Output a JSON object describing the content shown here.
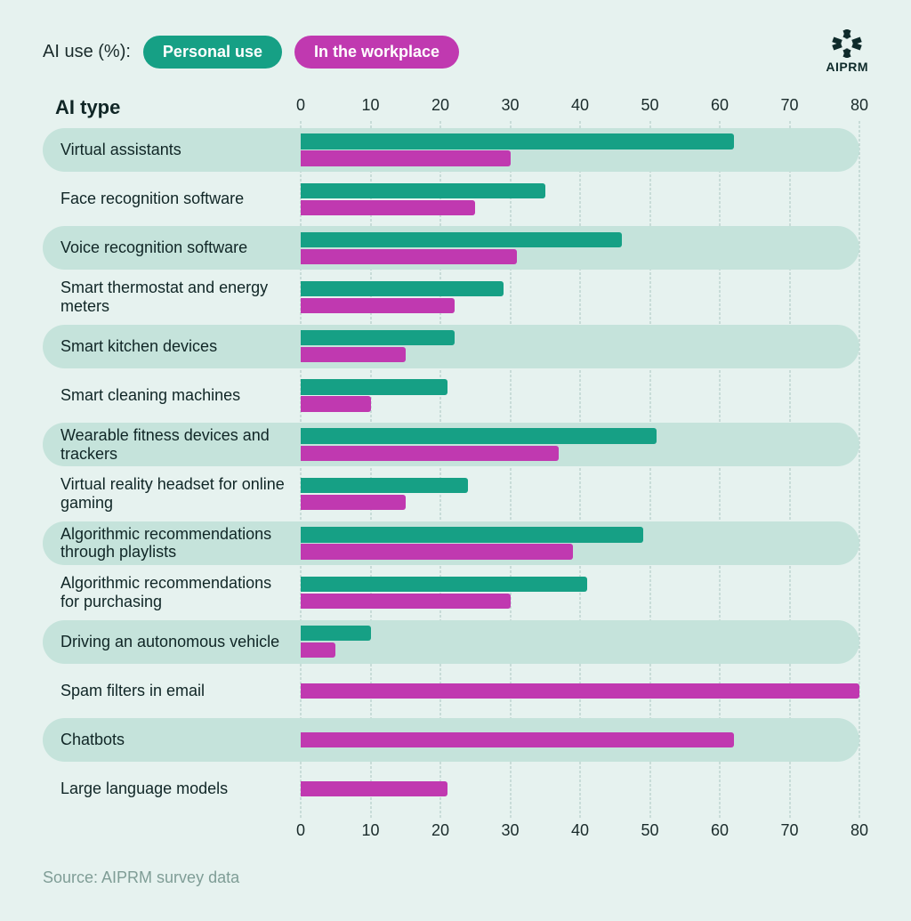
{
  "legend": {
    "title": "AI use (%):",
    "series": [
      {
        "key": "personal",
        "label": "Personal use",
        "color": "#16a085"
      },
      {
        "key": "workplace",
        "label": "In the workplace",
        "color": "#c039b0"
      }
    ]
  },
  "logo": {
    "text": "AIPRM"
  },
  "column_header": "AI type",
  "axis": {
    "min": 0,
    "max": 80,
    "ticks": [
      0,
      10,
      20,
      30,
      40,
      50,
      60,
      70,
      80
    ],
    "tick_fontsize": 18,
    "grid_color": "#a9c7c0"
  },
  "colors": {
    "page_bg": "#e6f2ef",
    "row_band_bg": "#c5e3db",
    "text": "#1a2b2b",
    "muted_text": "#7f9d96"
  },
  "typography": {
    "header_fontsize": 22,
    "label_fontsize": 18,
    "legend_fontsize": 18
  },
  "chart": {
    "type": "grouped-horizontal-bar",
    "bar_gap": 0.08,
    "row_radius": 26
  },
  "rows": [
    {
      "label": "Virtual assistants",
      "shaded": true,
      "personal": 62,
      "workplace": 30
    },
    {
      "label": "Face recognition software",
      "shaded": false,
      "personal": 35,
      "workplace": 25
    },
    {
      "label": "Voice recognition software",
      "shaded": true,
      "personal": 46,
      "workplace": 31
    },
    {
      "label": "Smart thermostat and energy meters",
      "shaded": false,
      "personal": 29,
      "workplace": 22
    },
    {
      "label": "Smart kitchen devices",
      "shaded": true,
      "personal": 22,
      "workplace": 15
    },
    {
      "label": "Smart cleaning machines",
      "shaded": false,
      "personal": 21,
      "workplace": 10
    },
    {
      "label": "Wearable fitness devices and trackers",
      "shaded": true,
      "personal": 51,
      "workplace": 37
    },
    {
      "label": "Virtual reality headset for online gaming",
      "shaded": false,
      "personal": 24,
      "workplace": 15
    },
    {
      "label": "Algorithmic recommendations through playlists",
      "shaded": true,
      "personal": 49,
      "workplace": 39
    },
    {
      "label": "Algorithmic recommendations for purchasing",
      "shaded": false,
      "personal": 41,
      "workplace": 30
    },
    {
      "label": "Driving an autonomous vehicle",
      "shaded": true,
      "personal": 10,
      "workplace": 5
    },
    {
      "label": "Spam filters in email",
      "shaded": false,
      "personal": 0,
      "workplace": 80
    },
    {
      "label": "Chatbots",
      "shaded": true,
      "personal": 0,
      "workplace": 62
    },
    {
      "label": "Large language models",
      "shaded": false,
      "personal": 0,
      "workplace": 21
    }
  ],
  "source": "Source: AIPRM survey data"
}
